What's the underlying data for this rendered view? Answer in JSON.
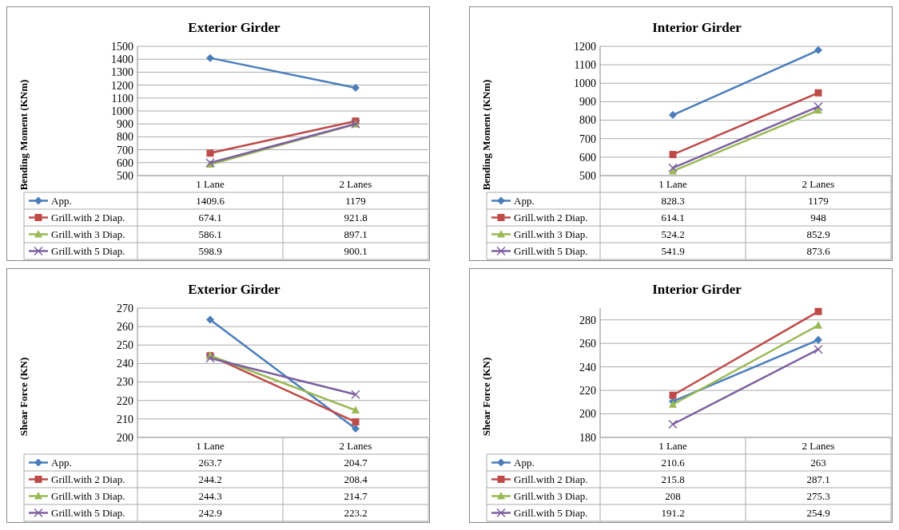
{
  "chart_data": [
    {
      "type": "line",
      "title": "Exterior Girder",
      "ylabel": "Bending Moment (KNm)",
      "categories": [
        "1 Lane",
        "2 Lanes"
      ],
      "ylim": [
        500,
        1500
      ],
      "yticks": [
        500,
        600,
        700,
        800,
        900,
        1000,
        1100,
        1200,
        1300,
        1400,
        1500
      ],
      "grid": "y",
      "legend": "bottom",
      "data_labels": true,
      "series": [
        {
          "name": "App.",
          "color": "#4a7ebb",
          "marker": "diamond",
          "values": [
            1409.6,
            1179
          ]
        },
        {
          "name": "Grill.with 2 Diap.",
          "color": "#be4b48",
          "marker": "square",
          "values": [
            674.1,
            921.8
          ]
        },
        {
          "name": "Grill.with 3 Diap.",
          "color": "#98b954",
          "marker": "triangle",
          "values": [
            586.1,
            897.1
          ]
        },
        {
          "name": "Grill.with 5 Diap.",
          "color": "#7d60a0",
          "marker": "cross",
          "values": [
            598.9,
            900.1
          ]
        }
      ]
    },
    {
      "type": "line",
      "title": "Interior Girder",
      "ylabel": "Bending Moment (KNm)",
      "categories": [
        "1 Lane",
        "2 Lanes"
      ],
      "ylim": [
        500,
        1200
      ],
      "yticks": [
        500,
        600,
        700,
        800,
        900,
        1000,
        1100,
        1200
      ],
      "grid": "y",
      "legend": "bottom",
      "data_labels": true,
      "series": [
        {
          "name": "App.",
          "color": "#4a7ebb",
          "marker": "diamond",
          "values": [
            828.3,
            1179
          ]
        },
        {
          "name": "Grill.with 2 Diap.",
          "color": "#be4b48",
          "marker": "square",
          "values": [
            614.1,
            948
          ]
        },
        {
          "name": "Grill.with 3 Diap.",
          "color": "#98b954",
          "marker": "triangle",
          "values": [
            524.2,
            852.9
          ]
        },
        {
          "name": "Grill.with 5 Diap.",
          "color": "#7d60a0",
          "marker": "cross",
          "values": [
            541.9,
            873.6
          ]
        }
      ]
    },
    {
      "type": "line",
      "title": "Exterior Girder",
      "ylabel": "Shear Force (KN)",
      "categories": [
        "1 Lane",
        "2 Lanes"
      ],
      "ylim": [
        200,
        270
      ],
      "yticks": [
        200,
        210,
        220,
        230,
        240,
        250,
        260,
        270
      ],
      "grid": "y",
      "legend": "bottom",
      "data_labels": true,
      "series": [
        {
          "name": "App.",
          "color": "#4a7ebb",
          "marker": "diamond",
          "values": [
            263.7,
            204.7
          ]
        },
        {
          "name": "Grill.with 2 Diap.",
          "color": "#be4b48",
          "marker": "square",
          "values": [
            244.2,
            208.4
          ]
        },
        {
          "name": "Grill.with 3 Diap.",
          "color": "#98b954",
          "marker": "triangle",
          "values": [
            244.3,
            214.7
          ]
        },
        {
          "name": "Grill.with 5 Diap.",
          "color": "#7d60a0",
          "marker": "cross",
          "values": [
            242.9,
            223.2
          ]
        }
      ]
    },
    {
      "type": "line",
      "title": "Interior Girder",
      "ylabel": "Shear Force (KN)",
      "categories": [
        "1 Lane",
        "2 Lanes"
      ],
      "ylim": [
        180,
        290
      ],
      "yticks": [
        180,
        200,
        220,
        240,
        260,
        280
      ],
      "grid": "y",
      "legend": "bottom",
      "data_labels": true,
      "series": [
        {
          "name": "App.",
          "color": "#4a7ebb",
          "marker": "diamond",
          "values": [
            210.6,
            263
          ]
        },
        {
          "name": "Grill.with 2 Diap.",
          "color": "#be4b48",
          "marker": "square",
          "values": [
            215.8,
            287.1
          ]
        },
        {
          "name": "Grill.with 3 Diap.",
          "color": "#98b954",
          "marker": "triangle",
          "values": [
            208,
            275.3
          ]
        },
        {
          "name": "Grill.with 5 Diap.",
          "color": "#7d60a0",
          "marker": "cross",
          "values": [
            191.2,
            254.9
          ]
        }
      ]
    }
  ]
}
